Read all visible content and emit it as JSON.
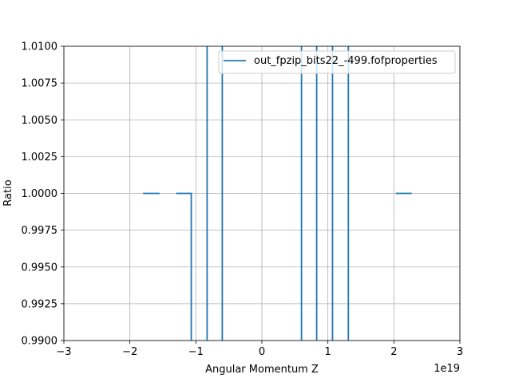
{
  "chart_data": {
    "type": "line",
    "title": "",
    "xlabel": "Angular Momentum Z",
    "ylabel": "Ratio",
    "x_offset_label": "1e19",
    "xlim": [
      -3,
      3
    ],
    "ylim": [
      0.99,
      1.01
    ],
    "x_scale_note": "x values in units of 1e19",
    "xticks": [
      -3,
      -2,
      -1,
      0,
      1,
      2,
      3
    ],
    "xtick_labels": [
      "−3",
      "−2",
      "−1",
      "0",
      "1",
      "2",
      "3"
    ],
    "yticks": [
      0.99,
      0.9925,
      0.995,
      0.9975,
      1.0,
      1.0025,
      1.005,
      1.0075,
      1.01
    ],
    "ytick_labels": [
      "0.9900",
      "0.9925",
      "0.9950",
      "0.9975",
      "1.0000",
      "1.0025",
      "1.0050",
      "1.0075",
      "1.0100"
    ],
    "grid": true,
    "legend_position": "top-right",
    "series": [
      {
        "name": "out_fpzip_bits22_-499.fofproperties",
        "color": "#1f77b4",
        "segments": [
          [
            [
              -1.8,
              1.0
            ],
            [
              -1.55,
              1.0
            ]
          ],
          [
            [
              -1.3,
              1.0
            ],
            [
              -1.07,
              1.0
            ],
            [
              -1.07,
              0.99
            ]
          ],
          [
            [
              -0.83,
              0.99
            ],
            [
              -0.83,
              1.01
            ]
          ],
          [
            [
              -0.6,
              0.99
            ],
            [
              -0.6,
              1.01
            ]
          ],
          [
            [
              0.6,
              0.99
            ],
            [
              0.6,
              1.01
            ]
          ],
          [
            [
              0.83,
              0.99
            ],
            [
              0.83,
              1.01
            ]
          ],
          [
            [
              1.07,
              0.99
            ],
            [
              1.07,
              1.01
            ]
          ],
          [
            [
              1.31,
              0.99
            ],
            [
              1.31,
              1.01
            ]
          ],
          [
            [
              2.03,
              1.0
            ],
            [
              2.27,
              1.0
            ]
          ]
        ]
      }
    ]
  }
}
